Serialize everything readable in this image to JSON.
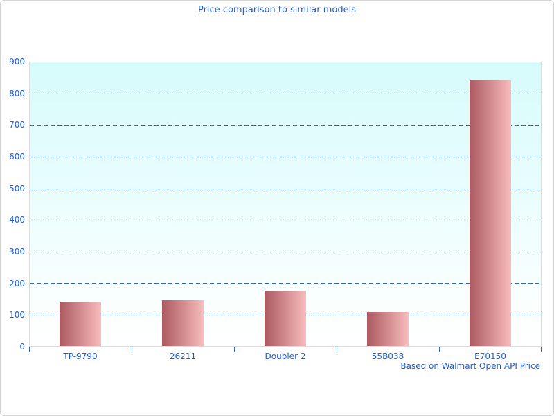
{
  "title": "Price comparison to similar models",
  "footnote": "Based on Walmart Open API Price",
  "colors": {
    "text_blue": "#1d5ed3",
    "gridline_blue": "#2f64c8",
    "plot_bg_top": "#d7fbfc",
    "plot_bg_bottom": "#ffffff",
    "plot_border": "#dcdcdc",
    "frame_border": "#d4d4d4",
    "bar_gradient_left": "#ab5a60",
    "bar_gradient_right": "#f8bcbc"
  },
  "chart_data": {
    "type": "bar",
    "title": "Price comparison to similar models",
    "categories": [
      "TP-9790",
      "26211",
      "Doubler 2",
      "55B038",
      "E70150"
    ],
    "values": [
      140,
      147,
      178,
      110,
      840
    ],
    "xlabel": "",
    "ylabel": "",
    "ylim": [
      0,
      900
    ],
    "yticks": [
      0,
      100,
      200,
      300,
      400,
      500,
      600,
      700,
      800,
      900
    ],
    "grid": "horizontal-dashed-blue",
    "legend": "none",
    "plot_background": "cyan-to-white vertical gradient",
    "annotation": "Based on Walmart Open API Price",
    "annotation_position": "bottom-right"
  }
}
